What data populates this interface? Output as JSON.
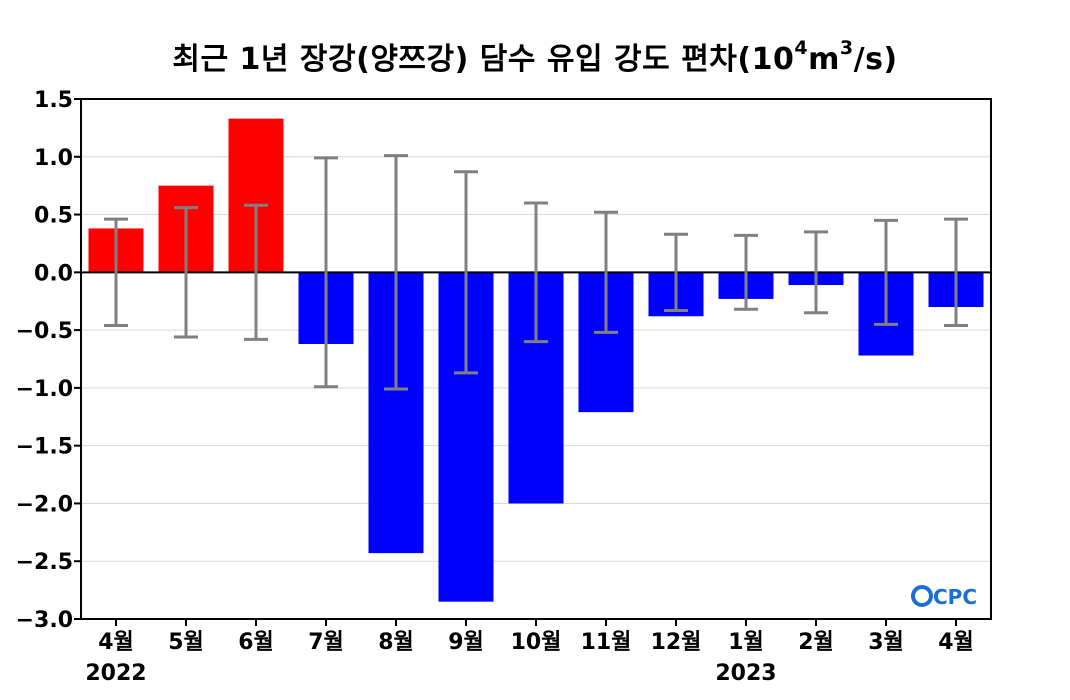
{
  "title": {
    "main": "최근 1년 장강(양쯔강) 담수 유입 강도 편차(10",
    "exp1": "4",
    "mid": "m",
    "exp2": "3",
    "end": "/s)"
  },
  "logo": {
    "text": "CPC",
    "mark": "O",
    "color": "#1a6fd6"
  },
  "colors": {
    "positive": "#ff0000",
    "negative": "#0000ff",
    "errorbar": "#808080",
    "grid": "#d9d9d9"
  },
  "chart_data": {
    "type": "bar",
    "title": "최근 1년 장강(양쯔강) 담수 유입 강도 편차(10⁴m³/s)",
    "categories": [
      "4월",
      "5월",
      "6월",
      "7월",
      "8월",
      "9월",
      "10월",
      "11월",
      "12월",
      "1월",
      "2월",
      "3월",
      "4월"
    ],
    "year_labels": [
      {
        "category_index": 0,
        "text": "2022"
      },
      {
        "category_index": 9,
        "text": "2023"
      }
    ],
    "values": [
      0.38,
      0.75,
      1.33,
      -0.62,
      -2.43,
      -2.85,
      -2.0,
      -1.21,
      -0.38,
      -0.23,
      -0.11,
      -0.72,
      -0.3
    ],
    "error": [
      0.46,
      0.56,
      0.58,
      0.99,
      1.01,
      0.87,
      0.6,
      0.52,
      0.33,
      0.32,
      0.35,
      0.45,
      0.46
    ],
    "ylim": [
      -3.0,
      1.5
    ],
    "yticks": [
      1.5,
      1.0,
      0.5,
      0.0,
      -0.5,
      -1.0,
      -1.5,
      -2.0,
      -2.5,
      -3.0
    ],
    "ytick_labels": [
      "1.5",
      "1.0",
      "0.5",
      "0.0",
      "−0.5",
      "−1.0",
      "−1.5",
      "−2.0",
      "−2.5",
      "−3.0"
    ],
    "grid": true,
    "xlabel": "",
    "ylabel": ""
  }
}
